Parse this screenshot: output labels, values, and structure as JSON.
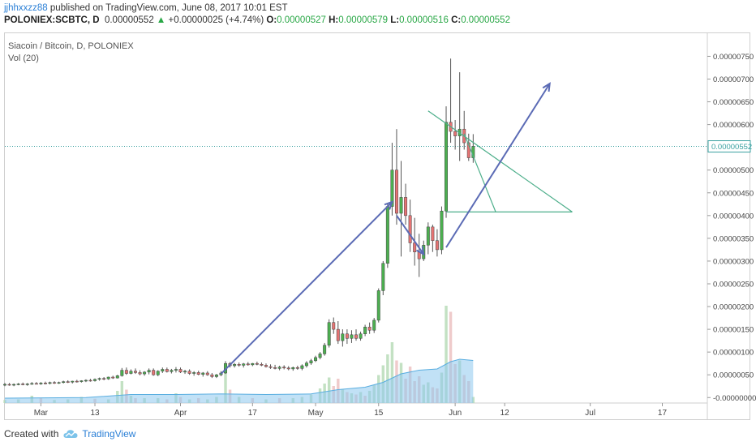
{
  "header": {
    "author": "jjhhxxzz88",
    "published": "published on TradingView.com, June 08, 2017 10:01 EST",
    "symbol": "POLONIEX:SCBTC, D",
    "last": "0.00000552",
    "change": "+0.00000025 (+4.74%)",
    "o_label": "O:",
    "o": "0.00000527",
    "h_label": "H:",
    "h": "0.00000579",
    "l_label": "L:",
    "l": "0.00000516",
    "c_label": "C:",
    "c": "0.00000552"
  },
  "legend": {
    "title": "Siacoin / Bitcoin, D, POLONIEX",
    "indicator": "Vol (20)"
  },
  "footer": {
    "created_with": "Created with",
    "brand": "TradingView"
  },
  "colors": {
    "up": "#4caf50",
    "down": "#e57373",
    "wick": "#555555",
    "arrow": "#5b6bb5",
    "trend": "#4cae8a",
    "price_line": "#3aa0a0",
    "vol_up": "#b9dcb9",
    "vol_down": "#ecc2c2",
    "vol_ma": "#8ec9ee"
  },
  "chart_data": {
    "type": "candlestick",
    "price_axis": {
      "ticks": [
        "0.00000750",
        "0.00000700",
        "0.00000650",
        "0.00000600",
        "0.00000500",
        "0.00000450",
        "0.00000400",
        "0.00000350",
        "0.00000300",
        "0.00000250",
        "0.00000200",
        "0.00000150",
        "0.00000100",
        "0.00000050",
        "-0.00000000"
      ],
      "tick_values": [
        750,
        700,
        650,
        600,
        500,
        450,
        400,
        350,
        300,
        250,
        200,
        150,
        100,
        50,
        0
      ],
      "range": [
        -12,
        790
      ],
      "last_label": "0.00000552",
      "last_value": 552
    },
    "time_axis": {
      "labels": [
        "Mar",
        "13",
        "Apr",
        "17",
        "May",
        "15",
        "Jun",
        "12",
        "Jul",
        "17"
      ],
      "label_days": [
        0,
        12,
        31,
        47,
        61,
        75,
        92,
        103,
        122,
        138
      ],
      "range_days": [
        -8,
        148
      ]
    },
    "candles": [
      {
        "d": -8,
        "o": 28,
        "h": 32,
        "l": 25,
        "c": 29
      },
      {
        "d": -7,
        "o": 29,
        "h": 32,
        "l": 26,
        "c": 28
      },
      {
        "d": -6,
        "o": 28,
        "h": 31,
        "l": 25,
        "c": 29
      },
      {
        "d": -5,
        "o": 29,
        "h": 32,
        "l": 27,
        "c": 30
      },
      {
        "d": -4,
        "o": 30,
        "h": 33,
        "l": 27,
        "c": 29
      },
      {
        "d": -3,
        "o": 29,
        "h": 32,
        "l": 26,
        "c": 30
      },
      {
        "d": -2,
        "o": 30,
        "h": 34,
        "l": 28,
        "c": 31
      },
      {
        "d": -1,
        "o": 31,
        "h": 34,
        "l": 29,
        "c": 30
      },
      {
        "d": 0,
        "o": 30,
        "h": 34,
        "l": 28,
        "c": 32
      },
      {
        "d": 1,
        "o": 32,
        "h": 35,
        "l": 29,
        "c": 31
      },
      {
        "d": 2,
        "o": 31,
        "h": 35,
        "l": 29,
        "c": 33
      },
      {
        "d": 3,
        "o": 33,
        "h": 36,
        "l": 30,
        "c": 32
      },
      {
        "d": 4,
        "o": 32,
        "h": 35,
        "l": 30,
        "c": 33
      },
      {
        "d": 5,
        "o": 33,
        "h": 37,
        "l": 31,
        "c": 35
      },
      {
        "d": 6,
        "o": 35,
        "h": 38,
        "l": 32,
        "c": 34
      },
      {
        "d": 7,
        "o": 34,
        "h": 37,
        "l": 31,
        "c": 36
      },
      {
        "d": 8,
        "o": 36,
        "h": 39,
        "l": 33,
        "c": 35
      },
      {
        "d": 9,
        "o": 35,
        "h": 38,
        "l": 33,
        "c": 37
      },
      {
        "d": 10,
        "o": 37,
        "h": 40,
        "l": 34,
        "c": 38
      },
      {
        "d": 11,
        "o": 38,
        "h": 41,
        "l": 35,
        "c": 37
      },
      {
        "d": 12,
        "o": 37,
        "h": 42,
        "l": 35,
        "c": 40
      },
      {
        "d": 13,
        "o": 40,
        "h": 44,
        "l": 37,
        "c": 42
      },
      {
        "d": 14,
        "o": 42,
        "h": 45,
        "l": 38,
        "c": 41
      },
      {
        "d": 15,
        "o": 41,
        "h": 46,
        "l": 39,
        "c": 45
      },
      {
        "d": 16,
        "o": 45,
        "h": 48,
        "l": 41,
        "c": 43
      },
      {
        "d": 17,
        "o": 43,
        "h": 50,
        "l": 42,
        "c": 48
      },
      {
        "d": 18,
        "o": 48,
        "h": 65,
        "l": 46,
        "c": 60
      },
      {
        "d": 19,
        "o": 60,
        "h": 66,
        "l": 50,
        "c": 53
      },
      {
        "d": 20,
        "o": 53,
        "h": 62,
        "l": 51,
        "c": 58
      },
      {
        "d": 21,
        "o": 58,
        "h": 64,
        "l": 52,
        "c": 55
      },
      {
        "d": 22,
        "o": 55,
        "h": 60,
        "l": 49,
        "c": 52
      },
      {
        "d": 23,
        "o": 52,
        "h": 58,
        "l": 48,
        "c": 56
      },
      {
        "d": 24,
        "o": 56,
        "h": 64,
        "l": 51,
        "c": 60
      },
      {
        "d": 25,
        "o": 60,
        "h": 64,
        "l": 48,
        "c": 50
      },
      {
        "d": 26,
        "o": 50,
        "h": 60,
        "l": 47,
        "c": 58
      },
      {
        "d": 27,
        "o": 58,
        "h": 66,
        "l": 54,
        "c": 62
      },
      {
        "d": 28,
        "o": 62,
        "h": 66,
        "l": 55,
        "c": 57
      },
      {
        "d": 29,
        "o": 57,
        "h": 63,
        "l": 53,
        "c": 60
      },
      {
        "d": 30,
        "o": 60,
        "h": 67,
        "l": 55,
        "c": 62
      },
      {
        "d": 31,
        "o": 62,
        "h": 66,
        "l": 54,
        "c": 56
      },
      {
        "d": 32,
        "o": 56,
        "h": 61,
        "l": 52,
        "c": 58
      },
      {
        "d": 33,
        "o": 58,
        "h": 62,
        "l": 50,
        "c": 53
      },
      {
        "d": 34,
        "o": 53,
        "h": 58,
        "l": 48,
        "c": 55
      },
      {
        "d": 35,
        "o": 55,
        "h": 59,
        "l": 49,
        "c": 51
      },
      {
        "d": 36,
        "o": 51,
        "h": 56,
        "l": 46,
        "c": 54
      },
      {
        "d": 37,
        "o": 54,
        "h": 58,
        "l": 48,
        "c": 50
      },
      {
        "d": 38,
        "o": 50,
        "h": 54,
        "l": 43,
        "c": 46
      },
      {
        "d": 39,
        "o": 46,
        "h": 52,
        "l": 43,
        "c": 50
      },
      {
        "d": 40,
        "o": 50,
        "h": 58,
        "l": 47,
        "c": 54
      },
      {
        "d": 41,
        "o": 54,
        "h": 80,
        "l": 52,
        "c": 75
      },
      {
        "d": 42,
        "o": 75,
        "h": 78,
        "l": 66,
        "c": 70
      },
      {
        "d": 43,
        "o": 70,
        "h": 76,
        "l": 66,
        "c": 73
      },
      {
        "d": 44,
        "o": 73,
        "h": 77,
        "l": 68,
        "c": 71
      },
      {
        "d": 45,
        "o": 71,
        "h": 76,
        "l": 66,
        "c": 74
      },
      {
        "d": 46,
        "o": 74,
        "h": 78,
        "l": 70,
        "c": 72
      },
      {
        "d": 47,
        "o": 72,
        "h": 76,
        "l": 69,
        "c": 75
      },
      {
        "d": 48,
        "o": 75,
        "h": 79,
        "l": 71,
        "c": 73
      },
      {
        "d": 49,
        "o": 73,
        "h": 77,
        "l": 69,
        "c": 71
      },
      {
        "d": 50,
        "o": 71,
        "h": 75,
        "l": 66,
        "c": 68
      },
      {
        "d": 51,
        "o": 68,
        "h": 73,
        "l": 63,
        "c": 66
      },
      {
        "d": 52,
        "o": 66,
        "h": 72,
        "l": 62,
        "c": 64
      },
      {
        "d": 53,
        "o": 64,
        "h": 70,
        "l": 60,
        "c": 67
      },
      {
        "d": 54,
        "o": 67,
        "h": 71,
        "l": 62,
        "c": 65
      },
      {
        "d": 55,
        "o": 65,
        "h": 69,
        "l": 60,
        "c": 63
      },
      {
        "d": 56,
        "o": 63,
        "h": 68,
        "l": 59,
        "c": 66
      },
      {
        "d": 57,
        "o": 66,
        "h": 70,
        "l": 61,
        "c": 64
      },
      {
        "d": 58,
        "o": 64,
        "h": 73,
        "l": 60,
        "c": 70
      },
      {
        "d": 59,
        "o": 70,
        "h": 80,
        "l": 66,
        "c": 76
      },
      {
        "d": 60,
        "o": 76,
        "h": 85,
        "l": 72,
        "c": 81
      },
      {
        "d": 61,
        "o": 81,
        "h": 92,
        "l": 78,
        "c": 88
      },
      {
        "d": 62,
        "o": 88,
        "h": 100,
        "l": 84,
        "c": 96
      },
      {
        "d": 63,
        "o": 96,
        "h": 120,
        "l": 92,
        "c": 115
      },
      {
        "d": 64,
        "o": 115,
        "h": 172,
        "l": 110,
        "c": 165
      },
      {
        "d": 65,
        "o": 165,
        "h": 176,
        "l": 140,
        "c": 150
      },
      {
        "d": 66,
        "o": 150,
        "h": 168,
        "l": 118,
        "c": 125
      },
      {
        "d": 67,
        "o": 125,
        "h": 150,
        "l": 112,
        "c": 140
      },
      {
        "d": 68,
        "o": 140,
        "h": 150,
        "l": 118,
        "c": 130
      },
      {
        "d": 69,
        "o": 130,
        "h": 148,
        "l": 120,
        "c": 138
      },
      {
        "d": 70,
        "o": 138,
        "h": 150,
        "l": 125,
        "c": 130
      },
      {
        "d": 71,
        "o": 130,
        "h": 145,
        "l": 125,
        "c": 140
      },
      {
        "d": 72,
        "o": 140,
        "h": 160,
        "l": 135,
        "c": 155
      },
      {
        "d": 73,
        "o": 155,
        "h": 165,
        "l": 140,
        "c": 148
      },
      {
        "d": 74,
        "o": 148,
        "h": 175,
        "l": 142,
        "c": 170
      },
      {
        "d": 75,
        "o": 170,
        "h": 240,
        "l": 165,
        "c": 235
      },
      {
        "d": 76,
        "o": 235,
        "h": 300,
        "l": 225,
        "c": 295
      },
      {
        "d": 77,
        "o": 295,
        "h": 425,
        "l": 285,
        "c": 420
      },
      {
        "d": 78,
        "o": 420,
        "h": 560,
        "l": 400,
        "c": 500
      },
      {
        "d": 79,
        "o": 500,
        "h": 590,
        "l": 380,
        "c": 405
      },
      {
        "d": 80,
        "o": 405,
        "h": 520,
        "l": 310,
        "c": 440
      },
      {
        "d": 81,
        "o": 440,
        "h": 470,
        "l": 380,
        "c": 400
      },
      {
        "d": 82,
        "o": 400,
        "h": 435,
        "l": 320,
        "c": 340
      },
      {
        "d": 83,
        "o": 340,
        "h": 395,
        "l": 290,
        "c": 320
      },
      {
        "d": 84,
        "o": 320,
        "h": 360,
        "l": 265,
        "c": 305
      },
      {
        "d": 85,
        "o": 305,
        "h": 345,
        "l": 300,
        "c": 335
      },
      {
        "d": 86,
        "o": 335,
        "h": 385,
        "l": 315,
        "c": 375
      },
      {
        "d": 87,
        "o": 375,
        "h": 380,
        "l": 320,
        "c": 345
      },
      {
        "d": 88,
        "o": 345,
        "h": 370,
        "l": 310,
        "c": 325
      },
      {
        "d": 89,
        "o": 325,
        "h": 420,
        "l": 315,
        "c": 410
      },
      {
        "d": 90,
        "o": 410,
        "h": 640,
        "l": 395,
        "c": 605
      },
      {
        "d": 91,
        "o": 605,
        "h": 745,
        "l": 560,
        "c": 585
      },
      {
        "d": 92,
        "o": 585,
        "h": 610,
        "l": 545,
        "c": 575
      },
      {
        "d": 93,
        "o": 575,
        "h": 715,
        "l": 520,
        "c": 590
      },
      {
        "d": 94,
        "o": 590,
        "h": 630,
        "l": 545,
        "c": 560
      },
      {
        "d": 95,
        "o": 560,
        "h": 580,
        "l": 520,
        "c": 527
      },
      {
        "d": 96,
        "o": 527,
        "h": 579,
        "l": 516,
        "c": 552
      }
    ],
    "volume": [
      {
        "d": -8,
        "v": 5,
        "u": 1
      },
      {
        "d": -5,
        "v": 6,
        "u": 1
      },
      {
        "d": -2,
        "v": 12,
        "u": 1
      },
      {
        "d": 0,
        "v": 8,
        "u": 0
      },
      {
        "d": 3,
        "v": 5,
        "u": 1
      },
      {
        "d": 6,
        "v": 6,
        "u": 1
      },
      {
        "d": 9,
        "v": 10,
        "u": 1
      },
      {
        "d": 12,
        "v": 7,
        "u": 0
      },
      {
        "d": 15,
        "v": 6,
        "u": 1
      },
      {
        "d": 17,
        "v": 20,
        "u": 1
      },
      {
        "d": 18,
        "v": 36,
        "u": 1
      },
      {
        "d": 19,
        "v": 22,
        "u": 0
      },
      {
        "d": 20,
        "v": 12,
        "u": 1
      },
      {
        "d": 21,
        "v": 8,
        "u": 0
      },
      {
        "d": 23,
        "v": 8,
        "u": 1
      },
      {
        "d": 26,
        "v": 8,
        "u": 1
      },
      {
        "d": 28,
        "v": 6,
        "u": 0
      },
      {
        "d": 30,
        "v": 16,
        "u": 1
      },
      {
        "d": 31,
        "v": 10,
        "u": 0
      },
      {
        "d": 33,
        "v": 6,
        "u": 1
      },
      {
        "d": 35,
        "v": 8,
        "u": 0
      },
      {
        "d": 37,
        "v": 6,
        "u": 1
      },
      {
        "d": 39,
        "v": 10,
        "u": 1
      },
      {
        "d": 41,
        "v": 52,
        "u": 1
      },
      {
        "d": 42,
        "v": 22,
        "u": 0
      },
      {
        "d": 44,
        "v": 10,
        "u": 1
      },
      {
        "d": 47,
        "v": 8,
        "u": 0
      },
      {
        "d": 50,
        "v": 6,
        "u": 1
      },
      {
        "d": 53,
        "v": 8,
        "u": 0
      },
      {
        "d": 56,
        "v": 8,
        "u": 1
      },
      {
        "d": 58,
        "v": 10,
        "u": 1
      },
      {
        "d": 60,
        "v": 14,
        "u": 1
      },
      {
        "d": 62,
        "v": 24,
        "u": 1
      },
      {
        "d": 63,
        "v": 32,
        "u": 1
      },
      {
        "d": 64,
        "v": 42,
        "u": 1
      },
      {
        "d": 65,
        "v": 28,
        "u": 0
      },
      {
        "d": 66,
        "v": 40,
        "u": 0
      },
      {
        "d": 67,
        "v": 22,
        "u": 1
      },
      {
        "d": 68,
        "v": 18,
        "u": 0
      },
      {
        "d": 69,
        "v": 16,
        "u": 1
      },
      {
        "d": 70,
        "v": 14,
        "u": 0
      },
      {
        "d": 71,
        "v": 18,
        "u": 1
      },
      {
        "d": 72,
        "v": 12,
        "u": 0
      },
      {
        "d": 73,
        "v": 20,
        "u": 1
      },
      {
        "d": 74,
        "v": 30,
        "u": 1
      },
      {
        "d": 75,
        "v": 46,
        "u": 1
      },
      {
        "d": 76,
        "v": 62,
        "u": 1
      },
      {
        "d": 77,
        "v": 80,
        "u": 1
      },
      {
        "d": 78,
        "v": 100,
        "u": 1
      },
      {
        "d": 79,
        "v": 70,
        "u": 0
      },
      {
        "d": 80,
        "v": 66,
        "u": 1
      },
      {
        "d": 81,
        "v": 40,
        "u": 0
      },
      {
        "d": 82,
        "v": 60,
        "u": 0
      },
      {
        "d": 83,
        "v": 36,
        "u": 0
      },
      {
        "d": 84,
        "v": 44,
        "u": 0
      },
      {
        "d": 85,
        "v": 30,
        "u": 1
      },
      {
        "d": 86,
        "v": 34,
        "u": 1
      },
      {
        "d": 87,
        "v": 26,
        "u": 0
      },
      {
        "d": 88,
        "v": 24,
        "u": 0
      },
      {
        "d": 89,
        "v": 50,
        "u": 1
      },
      {
        "d": 90,
        "v": 160,
        "u": 1
      },
      {
        "d": 91,
        "v": 150,
        "u": 0
      },
      {
        "d": 92,
        "v": 64,
        "u": 0
      },
      {
        "d": 93,
        "v": 70,
        "u": 1
      },
      {
        "d": 94,
        "v": 46,
        "u": 0
      },
      {
        "d": 95,
        "v": 36,
        "u": 0
      },
      {
        "d": 96,
        "v": 10,
        "u": 1
      }
    ],
    "volume_ma": [
      {
        "d": -8,
        "v": 8
      },
      {
        "d": 10,
        "v": 9
      },
      {
        "d": 20,
        "v": 14
      },
      {
        "d": 30,
        "v": 14
      },
      {
        "d": 40,
        "v": 15
      },
      {
        "d": 50,
        "v": 14
      },
      {
        "d": 60,
        "v": 15
      },
      {
        "d": 66,
        "v": 22
      },
      {
        "d": 72,
        "v": 26
      },
      {
        "d": 76,
        "v": 34
      },
      {
        "d": 80,
        "v": 48
      },
      {
        "d": 84,
        "v": 54
      },
      {
        "d": 88,
        "v": 56
      },
      {
        "d": 91,
        "v": 68
      },
      {
        "d": 93,
        "v": 72
      },
      {
        "d": 96,
        "v": 70
      }
    ],
    "drawings": {
      "arrows": [
        {
          "from": {
            "d": 40,
            "p": 52
          },
          "to": {
            "d": 78,
            "p": 430
          }
        },
        {
          "from": {
            "d": 79,
            "p": 400
          },
          "to": {
            "d": 85,
            "p": 315
          }
        },
        {
          "from": {
            "d": 90,
            "p": 330
          },
          "to": {
            "d": 113,
            "p": 690
          }
        }
      ],
      "trend_lines": [
        {
          "from": {
            "d": 86,
            "p": 630
          },
          "to": {
            "d": 118,
            "p": 408
          }
        },
        {
          "from": {
            "d": 90,
            "p": 408
          },
          "to": {
            "d": 118,
            "p": 408
          }
        },
        {
          "from": {
            "d": 94,
            "p": 580
          },
          "to": {
            "d": 101,
            "p": 408
          }
        }
      ]
    }
  }
}
